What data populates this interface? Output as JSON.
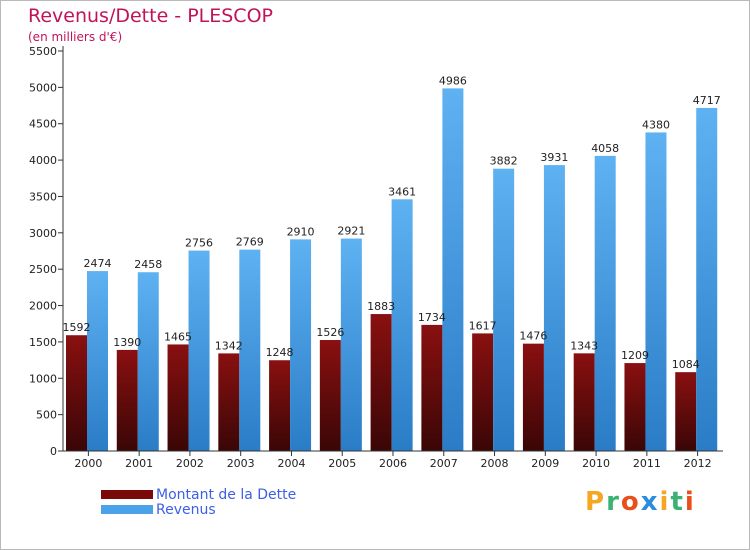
{
  "chart_data": {
    "type": "bar",
    "title": "Revenus/Dette - PLESCOP",
    "subtitle": "(en milliers d'€)",
    "categories": [
      "2000",
      "2001",
      "2002",
      "2003",
      "2004",
      "2005",
      "2006",
      "2007",
      "2008",
      "2009",
      "2010",
      "2011",
      "2012"
    ],
    "series": [
      {
        "name": "Montant de la Dette",
        "color": "#7a0a0a",
        "values": [
          1592,
          1390,
          1465,
          1342,
          1248,
          1526,
          1883,
          1734,
          1617,
          1476,
          1343,
          1209,
          1084
        ],
        "labels": [
          "1592",
          "1390",
          "1465",
          "1342",
          "1248",
          "1526",
          "1883",
          "1734",
          "1617",
          "1476",
          "1343",
          "1209",
          "1084"
        ]
      },
      {
        "name": "Revenus",
        "color": "#4aa3ea",
        "values": [
          2474,
          2458,
          2756,
          2769,
          2910,
          2921,
          3461,
          4986,
          3882,
          3931,
          4058,
          4380,
          4717
        ],
        "labels": [
          "2474",
          "2458",
          "2756",
          "2769",
          "2910",
          "2921",
          "3461",
          "4986",
          "3882",
          "3931",
          "4058",
          "4380",
          "4717"
        ]
      }
    ],
    "y_ticks": [
      "0",
      "500",
      "1000",
      "1500",
      "2000",
      "2500",
      "3000",
      "3500",
      "4000",
      "4500",
      "5000",
      "5500"
    ],
    "ylim": [
      0,
      5500
    ],
    "grid": false,
    "legend_position": "bottom-left"
  },
  "logo": {
    "letters": [
      "P",
      "r",
      "o",
      "x",
      "i",
      "t",
      "i"
    ],
    "letter_colors": [
      "#f5a623",
      "#3bb273",
      "#e94e1b",
      "#2a8de0",
      "#f5a623",
      "#3bb273",
      "#e94e1b"
    ]
  }
}
